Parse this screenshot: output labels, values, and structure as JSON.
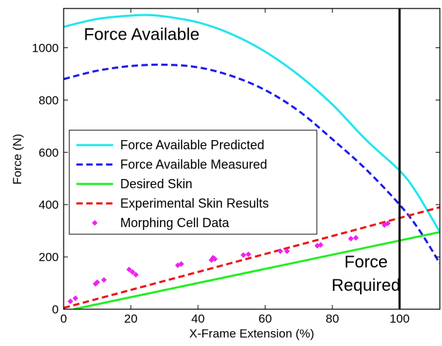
{
  "chart_data": {
    "type": "line",
    "xlabel": "X-Frame Extension (%)",
    "ylabel": "Force (N)",
    "xlim": [
      0,
      112
    ],
    "ylim": [
      0,
      1150
    ],
    "xticks": [
      0,
      20,
      40,
      60,
      80,
      100
    ],
    "yticks": [
      0,
      200,
      400,
      600,
      800,
      1000
    ],
    "grid": false,
    "legend_position": "center-left",
    "annotations": [
      {
        "text": "Force Available",
        "x": 6,
        "y": 1030
      },
      {
        "text": "Force",
        "x": 90,
        "y": 160
      },
      {
        "text": "Required",
        "x": 90,
        "y": 70
      }
    ],
    "reference_line": {
      "x": 100,
      "color": "#000000"
    },
    "series": [
      {
        "name": "Force Available Predicted",
        "style": "solid",
        "color": "#22e5ee",
        "x": [
          0,
          10,
          20,
          25,
          30,
          40,
          50,
          60,
          70,
          80,
          90,
          100,
          105,
          112
        ],
        "y": [
          1080,
          1110,
          1123,
          1125,
          1120,
          1097,
          1052,
          985,
          895,
          783,
          648,
          530,
          447,
          295
        ]
      },
      {
        "name": "Force Available Measured",
        "style": "dashed",
        "color": "#1a1aee",
        "x": [
          0,
          10,
          20,
          30,
          40,
          50,
          60,
          70,
          80,
          90,
          100,
          106,
          112
        ],
        "y": [
          880,
          912,
          930,
          935,
          925,
          892,
          838,
          758,
          650,
          535,
          400,
          300,
          175
        ]
      },
      {
        "name": "Desired Skin",
        "style": "solid",
        "color": "#22ee22",
        "x": [
          3,
          112
        ],
        "y": [
          0,
          295
        ]
      },
      {
        "name": "Experimental Skin Results",
        "style": "dashed",
        "color": "#ee1111",
        "x": [
          0,
          112
        ],
        "y": [
          5,
          390
        ]
      },
      {
        "name": "Morphing Cell Data",
        "style": "markers",
        "color": "#ee22ee",
        "points": [
          [
            2,
            30
          ],
          [
            3.5,
            42
          ],
          [
            9.5,
            97
          ],
          [
            10,
            103
          ],
          [
            12,
            112
          ],
          [
            19.5,
            152
          ],
          [
            20.5,
            142
          ],
          [
            21.5,
            132
          ],
          [
            34,
            168
          ],
          [
            35,
            173
          ],
          [
            44,
            188
          ],
          [
            44.5,
            197
          ],
          [
            45,
            192
          ],
          [
            53.5,
            207
          ],
          [
            55,
            210
          ],
          [
            64.5,
            222
          ],
          [
            66.5,
            222
          ],
          [
            75.5,
            243
          ],
          [
            76.5,
            246
          ],
          [
            85.5,
            270
          ],
          [
            87,
            273
          ],
          [
            95.5,
            322
          ],
          [
            96.5,
            328
          ]
        ]
      }
    ]
  }
}
